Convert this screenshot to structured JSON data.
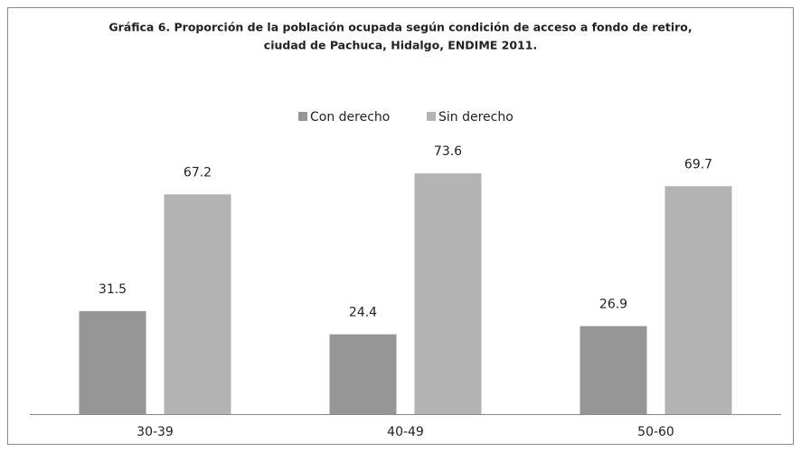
{
  "chart_data": {
    "type": "bar",
    "title": "Gráfica 6. Proporción de la población ocupada según condición de acceso a fondo de retiro,",
    "subtitle": "ciudad de Pachuca, Hidalgo, ENDIME 2011.",
    "categories": [
      "30-39",
      "40-49",
      "50-60"
    ],
    "series": [
      {
        "name": "Con derecho",
        "color": "#969696",
        "values": [
          31.5,
          24.4,
          26.9
        ]
      },
      {
        "name": "Sin derecho",
        "color": "#b3b3b3",
        "values": [
          67.2,
          73.6,
          69.7
        ]
      }
    ],
    "ylim": [
      0,
      80
    ],
    "legend": "top"
  }
}
